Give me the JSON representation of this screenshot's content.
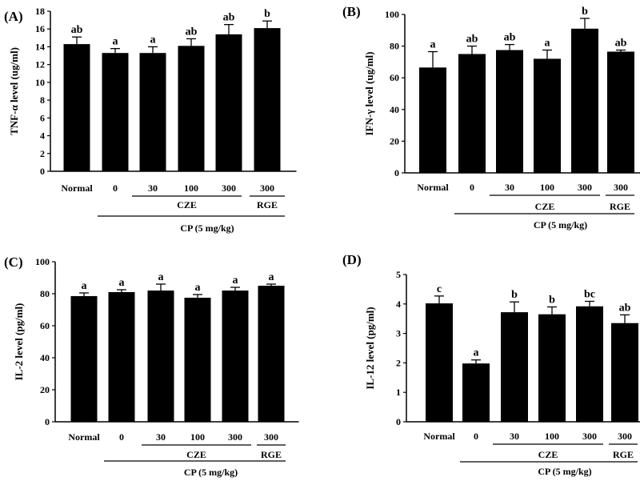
{
  "colors": {
    "bar": "#000000",
    "axis": "#000000",
    "background": "#ffffff"
  },
  "chart_data": [
    {
      "type": "bar",
      "panel_label": "(A)",
      "ylabel": "TNF-α level (ug/ml)",
      "ylim": [
        0,
        18
      ],
      "yticks": [
        "0",
        "2",
        "4",
        "6",
        "8",
        "10",
        "12",
        "14",
        "16",
        "18"
      ],
      "categories": [
        "Normal",
        "0",
        "30",
        "100",
        "300",
        "300"
      ],
      "values": [
        14.3,
        13.3,
        13.3,
        14.1,
        15.4,
        16.1
      ],
      "errors": [
        0.8,
        0.5,
        0.7,
        0.8,
        1.1,
        0.8
      ],
      "significance": [
        "ab",
        "a",
        "a",
        "ab",
        "ab",
        "b"
      ],
      "group_labels": {
        "cze": "CZE",
        "rge": "RGE",
        "cp": "CP (5 mg/kg)"
      }
    },
    {
      "type": "bar",
      "panel_label": "(B)",
      "ylabel": "IFN-γ level (ug/ml)",
      "ylim": [
        0,
        100
      ],
      "yticks": [
        "0",
        "20",
        "40",
        "60",
        "80",
        "100"
      ],
      "categories": [
        "Normal",
        "0",
        "30",
        "100",
        "300",
        "300"
      ],
      "values": [
        66.5,
        75,
        77.5,
        72,
        91,
        76.5
      ],
      "errors": [
        10,
        5,
        3.5,
        5.5,
        6.5,
        1
      ],
      "significance": [
        "a",
        "ab",
        "ab",
        "a",
        "b",
        "ab"
      ],
      "group_labels": {
        "cze": "CZE",
        "rge": "RGE",
        "cp": "CP (5 mg/kg)"
      }
    },
    {
      "type": "bar",
      "panel_label": "(C)",
      "ylabel": "IL-2 level (pg/ml)",
      "ylim": [
        0,
        100
      ],
      "yticks": [
        "0",
        "20",
        "40",
        "60",
        "80",
        "100"
      ],
      "categories": [
        "Normal",
        "0",
        "30",
        "100",
        "300",
        "300"
      ],
      "values": [
        78.5,
        81,
        82,
        77.5,
        82,
        85
      ],
      "errors": [
        2,
        1.5,
        4,
        2,
        2,
        1
      ],
      "significance": [
        "a",
        "a",
        "a",
        "a",
        "a",
        "a"
      ],
      "group_labels": {
        "cze": "CZE",
        "rge": "RGE",
        "cp": "CP (5 mg/kg)"
      }
    },
    {
      "type": "bar",
      "panel_label": "(D)",
      "ylabel": "IL-12 level (pg/ml)",
      "ylim": [
        0,
        5
      ],
      "yticks": [
        "0",
        "1",
        "2",
        "3",
        "4",
        "5"
      ],
      "categories": [
        "Normal",
        "0",
        "30",
        "100",
        "300",
        "300"
      ],
      "values": [
        4.02,
        1.98,
        3.72,
        3.65,
        3.92,
        3.35
      ],
      "errors": [
        0.25,
        0.12,
        0.35,
        0.25,
        0.17,
        0.28
      ],
      "significance": [
        "c",
        "a",
        "b",
        "b",
        "bc",
        "ab"
      ],
      "group_labels": {
        "cze": "CZE",
        "rge": "RGE",
        "cp": "CP (5 mg/kg)"
      }
    }
  ]
}
